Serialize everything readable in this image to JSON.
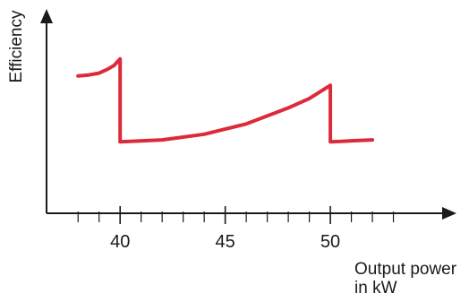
{
  "chart_data": {
    "type": "line",
    "title": "",
    "xlabel_lines": [
      "Output power",
      "in kW"
    ],
    "ylabel": "Efficiency",
    "xlim": [
      36.5,
      56
    ],
    "ylim": [
      0,
      1
    ],
    "x_ticks_major": [
      40,
      45,
      50
    ],
    "x_ticks_minor": [
      38,
      39,
      41,
      42,
      43,
      44,
      46,
      47,
      48,
      49,
      51,
      52,
      53
    ],
    "x_tick_labels": [
      "40",
      "45",
      "50"
    ],
    "grid": false,
    "legend": "none",
    "y_tick_labels": "none",
    "series": [
      {
        "color": "#dd2a3b",
        "points": [
          [
            38.0,
            0.73
          ],
          [
            38.5,
            0.735
          ],
          [
            39.0,
            0.745
          ],
          [
            39.4,
            0.765
          ],
          [
            39.7,
            0.785
          ],
          [
            40.0,
            0.82
          ],
          [
            40.0,
            0.38
          ],
          [
            42.0,
            0.39
          ],
          [
            44.0,
            0.42
          ],
          [
            46.0,
            0.475
          ],
          [
            48.0,
            0.56
          ],
          [
            49.0,
            0.61
          ],
          [
            50.0,
            0.68
          ],
          [
            50.0,
            0.38
          ],
          [
            50.5,
            0.382
          ],
          [
            51.0,
            0.385
          ],
          [
            52.0,
            0.39
          ]
        ]
      }
    ]
  }
}
